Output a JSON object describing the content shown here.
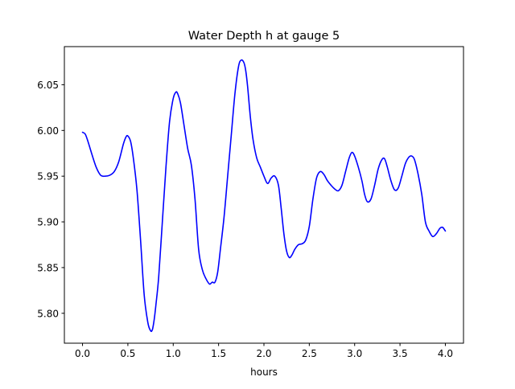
{
  "chart_data": {
    "type": "line",
    "title": "Water Depth h at gauge 5",
    "xlabel": "hours",
    "ylabel": "",
    "xlim": [
      -0.2,
      4.2
    ],
    "ylim": [
      5.7673,
      6.0917
    ],
    "xticks": [
      0.0,
      0.5,
      1.0,
      1.5,
      2.0,
      2.5,
      3.0,
      3.5,
      4.0
    ],
    "xtick_labels": [
      "0.0",
      "0.5",
      "1.0",
      "1.5",
      "2.0",
      "2.5",
      "3.0",
      "3.5",
      "4.0"
    ],
    "yticks": [
      5.8,
      5.85,
      5.9,
      5.95,
      6.0,
      6.05
    ],
    "ytick_labels": [
      "5.80",
      "5.85",
      "5.90",
      "5.95",
      "6.00",
      "6.05"
    ],
    "grid": false,
    "legend": "none",
    "series": [
      {
        "name": "",
        "color": "#0000ff",
        "x": [
          0.0,
          0.03,
          0.06,
          0.1,
          0.15,
          0.2,
          0.25,
          0.3,
          0.35,
          0.4,
          0.45,
          0.48,
          0.5,
          0.53,
          0.56,
          0.6,
          0.64,
          0.68,
          0.72,
          0.75,
          0.77,
          0.79,
          0.81,
          0.84,
          0.88,
          0.92,
          0.96,
          1.0,
          1.03,
          1.05,
          1.08,
          1.12,
          1.16,
          1.2,
          1.24,
          1.28,
          1.32,
          1.36,
          1.4,
          1.43,
          1.46,
          1.49,
          1.52,
          1.56,
          1.6,
          1.64,
          1.68,
          1.72,
          1.75,
          1.78,
          1.8,
          1.82,
          1.85,
          1.88,
          1.92,
          1.96,
          2.0,
          2.04,
          2.08,
          2.12,
          2.16,
          2.19,
          2.22,
          2.25,
          2.28,
          2.31,
          2.34,
          2.38,
          2.42,
          2.46,
          2.5,
          2.54,
          2.58,
          2.62,
          2.66,
          2.7,
          2.74,
          2.78,
          2.82,
          2.86,
          2.9,
          2.94,
          2.97,
          3.0,
          3.04,
          3.08,
          3.11,
          3.14,
          3.18,
          3.22,
          3.26,
          3.3,
          3.33,
          3.36,
          3.4,
          3.44,
          3.48,
          3.52,
          3.56,
          3.6,
          3.63,
          3.66,
          3.7,
          3.74,
          3.78,
          3.82,
          3.86,
          3.9,
          3.94,
          3.97,
          4.0
        ],
        "values": [
          5.998,
          5.996,
          5.988,
          5.975,
          5.96,
          5.951,
          5.95,
          5.951,
          5.955,
          5.966,
          5.985,
          5.993,
          5.994,
          5.988,
          5.97,
          5.935,
          5.88,
          5.82,
          5.79,
          5.781,
          5.782,
          5.793,
          5.81,
          5.84,
          5.9,
          5.96,
          6.01,
          6.035,
          6.042,
          6.04,
          6.03,
          6.005,
          5.98,
          5.962,
          5.925,
          5.87,
          5.848,
          5.838,
          5.832,
          5.834,
          5.834,
          5.845,
          5.87,
          5.905,
          5.95,
          5.995,
          6.04,
          6.07,
          6.077,
          6.074,
          6.065,
          6.048,
          6.015,
          5.99,
          5.97,
          5.96,
          5.95,
          5.942,
          5.948,
          5.95,
          5.94,
          5.915,
          5.887,
          5.868,
          5.861,
          5.864,
          5.87,
          5.875,
          5.876,
          5.88,
          5.895,
          5.925,
          5.948,
          5.955,
          5.952,
          5.945,
          5.94,
          5.936,
          5.934,
          5.94,
          5.955,
          5.97,
          5.976,
          5.972,
          5.96,
          5.945,
          5.93,
          5.922,
          5.925,
          5.94,
          5.958,
          5.968,
          5.969,
          5.96,
          5.945,
          5.935,
          5.937,
          5.95,
          5.964,
          5.971,
          5.972,
          5.968,
          5.952,
          5.93,
          5.9,
          5.89,
          5.884,
          5.887,
          5.893,
          5.894,
          5.89
        ]
      }
    ]
  }
}
